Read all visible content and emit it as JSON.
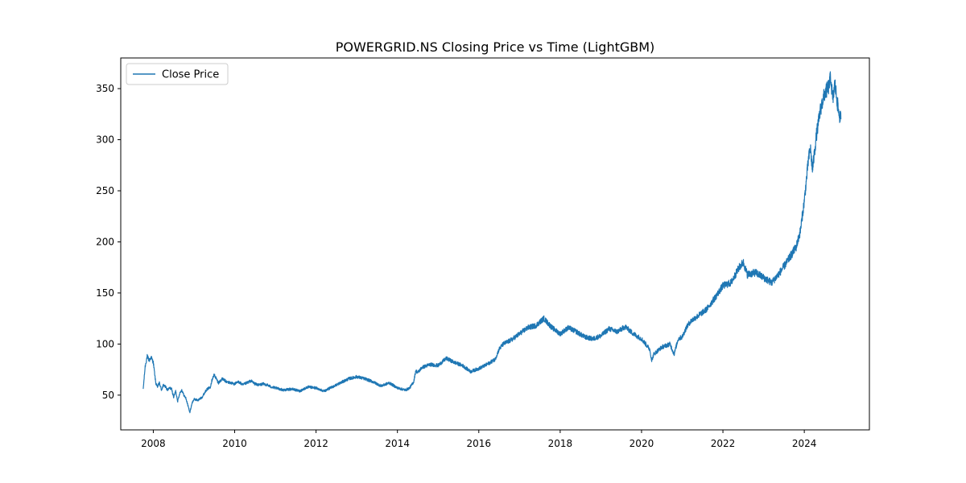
{
  "chart_data": {
    "type": "line",
    "title": "POWERGRID.NS Closing Price vs Time (LightGBM)",
    "xlabel": "",
    "ylabel": "",
    "xlim": [
      2007.2,
      2025.6
    ],
    "ylim": [
      16,
      380
    ],
    "x_ticks": [
      2008,
      2010,
      2012,
      2014,
      2016,
      2018,
      2020,
      2022,
      2024
    ],
    "y_ticks": [
      50,
      100,
      150,
      200,
      250,
      300,
      350
    ],
    "grid": false,
    "legend_position": "top-left",
    "line_color": "#1f77b4",
    "series": [
      {
        "name": "Close Price",
        "points": [
          [
            2007.75,
            55
          ],
          [
            2007.8,
            78
          ],
          [
            2007.85,
            88
          ],
          [
            2007.9,
            84
          ],
          [
            2007.95,
            87
          ],
          [
            2008.0,
            82
          ],
          [
            2008.03,
            72
          ],
          [
            2008.06,
            62
          ],
          [
            2008.1,
            58
          ],
          [
            2008.15,
            62
          ],
          [
            2008.2,
            55
          ],
          [
            2008.25,
            60
          ],
          [
            2008.3,
            58
          ],
          [
            2008.35,
            55
          ],
          [
            2008.4,
            57
          ],
          [
            2008.45,
            56
          ],
          [
            2008.5,
            48
          ],
          [
            2008.55,
            54
          ],
          [
            2008.6,
            44
          ],
          [
            2008.65,
            52
          ],
          [
            2008.7,
            55
          ],
          [
            2008.75,
            50
          ],
          [
            2008.8,
            47
          ],
          [
            2008.85,
            40
          ],
          [
            2008.9,
            33
          ],
          [
            2008.95,
            42
          ],
          [
            2009.0,
            46
          ],
          [
            2009.1,
            45
          ],
          [
            2009.2,
            48
          ],
          [
            2009.3,
            55
          ],
          [
            2009.4,
            58
          ],
          [
            2009.45,
            66
          ],
          [
            2009.5,
            70
          ],
          [
            2009.6,
            62
          ],
          [
            2009.7,
            66
          ],
          [
            2009.8,
            63
          ],
          [
            2009.9,
            62
          ],
          [
            2010.0,
            61
          ],
          [
            2010.1,
            63
          ],
          [
            2010.2,
            60
          ],
          [
            2010.3,
            62
          ],
          [
            2010.4,
            64
          ],
          [
            2010.5,
            61
          ],
          [
            2010.6,
            60
          ],
          [
            2010.7,
            61
          ],
          [
            2010.8,
            60
          ],
          [
            2010.9,
            58
          ],
          [
            2011.0,
            57
          ],
          [
            2011.2,
            55
          ],
          [
            2011.4,
            56
          ],
          [
            2011.6,
            54
          ],
          [
            2011.8,
            58
          ],
          [
            2012.0,
            57
          ],
          [
            2012.2,
            54
          ],
          [
            2012.4,
            58
          ],
          [
            2012.6,
            62
          ],
          [
            2012.8,
            66
          ],
          [
            2013.0,
            68
          ],
          [
            2013.2,
            66
          ],
          [
            2013.4,
            63
          ],
          [
            2013.6,
            59
          ],
          [
            2013.8,
            62
          ],
          [
            2014.0,
            57
          ],
          [
            2014.2,
            55
          ],
          [
            2014.3,
            57
          ],
          [
            2014.4,
            63
          ],
          [
            2014.45,
            74
          ],
          [
            2014.5,
            72
          ],
          [
            2014.6,
            77
          ],
          [
            2014.8,
            80
          ],
          [
            2015.0,
            79
          ],
          [
            2015.2,
            86
          ],
          [
            2015.4,
            82
          ],
          [
            2015.6,
            79
          ],
          [
            2015.8,
            73
          ],
          [
            2016.0,
            76
          ],
          [
            2016.2,
            80
          ],
          [
            2016.4,
            85
          ],
          [
            2016.5,
            95
          ],
          [
            2016.6,
            100
          ],
          [
            2016.8,
            104
          ],
          [
            2017.0,
            110
          ],
          [
            2017.2,
            116
          ],
          [
            2017.4,
            118
          ],
          [
            2017.6,
            125
          ],
          [
            2017.8,
            116
          ],
          [
            2018.0,
            110
          ],
          [
            2018.2,
            116
          ],
          [
            2018.4,
            112
          ],
          [
            2018.6,
            107
          ],
          [
            2018.8,
            105
          ],
          [
            2019.0,
            108
          ],
          [
            2019.2,
            115
          ],
          [
            2019.4,
            112
          ],
          [
            2019.6,
            117
          ],
          [
            2019.8,
            110
          ],
          [
            2020.0,
            105
          ],
          [
            2020.2,
            95
          ],
          [
            2020.25,
            84
          ],
          [
            2020.3,
            90
          ],
          [
            2020.5,
            97
          ],
          [
            2020.7,
            100
          ],
          [
            2020.8,
            90
          ],
          [
            2020.9,
            105
          ],
          [
            2021.0,
            107
          ],
          [
            2021.1,
            116
          ],
          [
            2021.2,
            122
          ],
          [
            2021.4,
            128
          ],
          [
            2021.6,
            134
          ],
          [
            2021.8,
            145
          ],
          [
            2022.0,
            157
          ],
          [
            2022.2,
            160
          ],
          [
            2022.4,
            175
          ],
          [
            2022.5,
            180
          ],
          [
            2022.6,
            168
          ],
          [
            2022.8,
            170
          ],
          [
            2023.0,
            165
          ],
          [
            2023.2,
            160
          ],
          [
            2023.4,
            170
          ],
          [
            2023.6,
            182
          ],
          [
            2023.8,
            195
          ],
          [
            2023.9,
            210
          ],
          [
            2024.0,
            240
          ],
          [
            2024.1,
            280
          ],
          [
            2024.15,
            292
          ],
          [
            2024.2,
            270
          ],
          [
            2024.3,
            305
          ],
          [
            2024.4,
            330
          ],
          [
            2024.5,
            345
          ],
          [
            2024.6,
            352
          ],
          [
            2024.65,
            361
          ],
          [
            2024.7,
            338
          ],
          [
            2024.75,
            355
          ],
          [
            2024.8,
            340
          ],
          [
            2024.85,
            325
          ],
          [
            2024.9,
            320
          ]
        ]
      }
    ]
  }
}
